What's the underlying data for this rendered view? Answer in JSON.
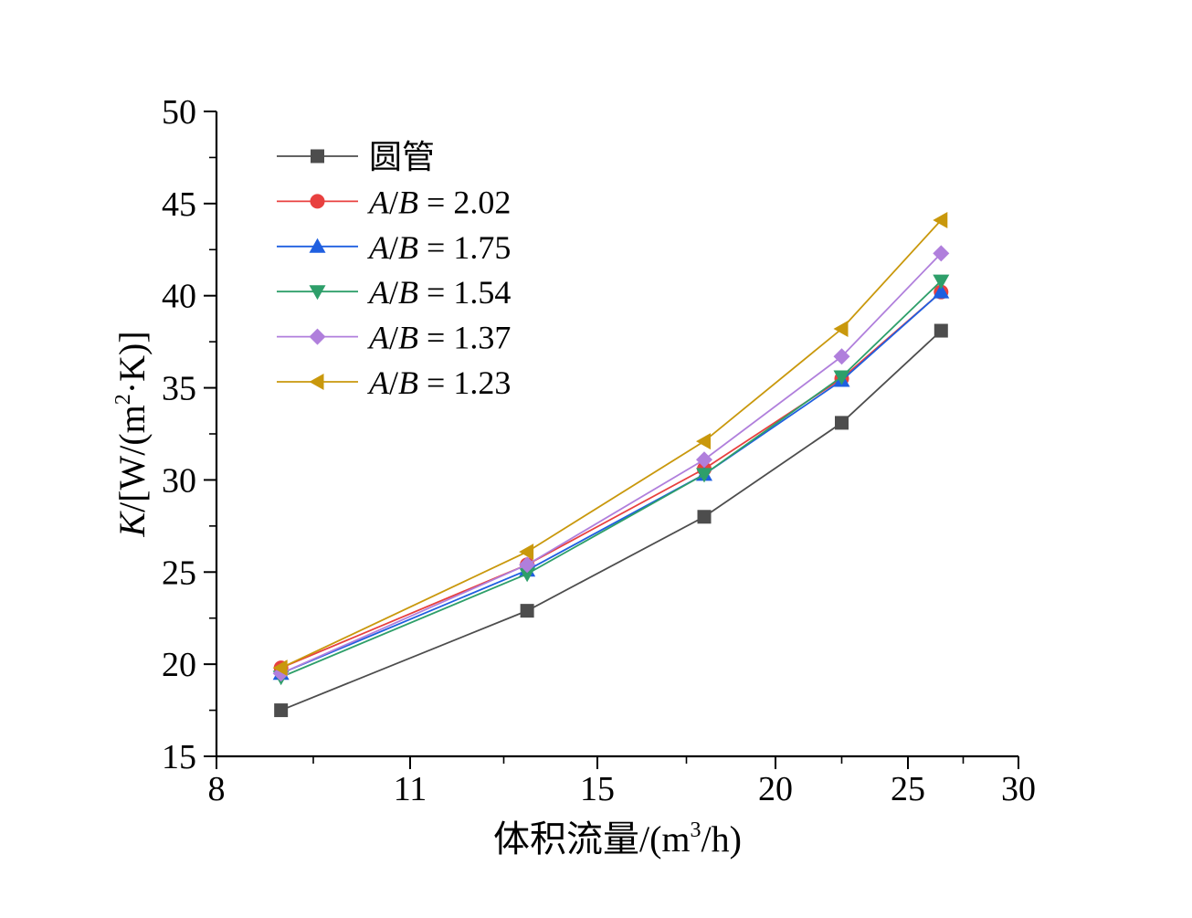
{
  "chart_data": {
    "type": "line",
    "xlabel_main": "体积流量/(m",
    "xlabel_sup": "3",
    "xlabel_tail": "/h)",
    "ylabel_var": "K",
    "ylabel_main": "/[W/(m",
    "ylabel_sup": "2",
    "ylabel_tail": "·K)]",
    "xlim": [
      8,
      30
    ],
    "ylim": [
      15,
      50
    ],
    "x_ticks": [
      8,
      11,
      15,
      20,
      25,
      30
    ],
    "y_ticks": [
      15,
      20,
      25,
      30,
      35,
      40,
      45,
      50
    ],
    "grid": false,
    "legend_position": "top-left",
    "x": [
      9,
      13.5,
      18,
      22.5,
      26.5
    ],
    "series": [
      {
        "name": "圆管",
        "ab_value": "",
        "color": "#4d4d4d",
        "marker": "square",
        "values": [
          17.5,
          22.9,
          28.0,
          33.1,
          38.1
        ]
      },
      {
        "name": "A/B = 2.02",
        "ab_value": "2.02",
        "color": "#e8403f",
        "marker": "circle",
        "values": [
          19.8,
          25.4,
          30.6,
          35.5,
          40.2
        ]
      },
      {
        "name": "A/B = 1.75",
        "ab_value": "1.75",
        "color": "#1f5fe0",
        "marker": "triangle-up",
        "values": [
          19.5,
          25.1,
          30.3,
          35.4,
          40.2
        ]
      },
      {
        "name": "A/B = 1.54",
        "ab_value": "1.54",
        "color": "#2e9f6a",
        "marker": "triangle-down",
        "values": [
          19.3,
          24.9,
          30.3,
          35.6,
          40.8
        ]
      },
      {
        "name": "A/B = 1.37",
        "ab_value": "1.37",
        "color": "#b07fdc",
        "marker": "diamond",
        "values": [
          19.5,
          25.4,
          31.1,
          36.7,
          42.3
        ]
      },
      {
        "name": "A/B = 1.23",
        "ab_value": "1.23",
        "color": "#c9980c",
        "marker": "triangle-left",
        "values": [
          19.8,
          26.1,
          32.1,
          38.2,
          44.1
        ]
      }
    ]
  }
}
